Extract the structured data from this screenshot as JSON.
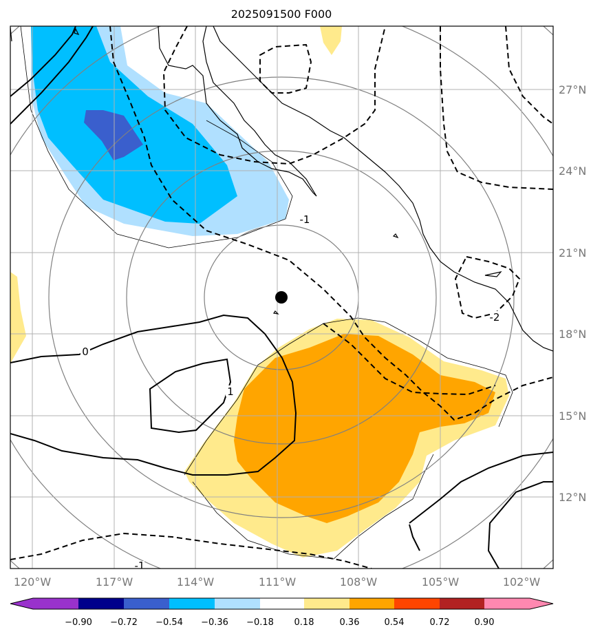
{
  "title": "2025091500 F000",
  "lat_labels": [
    "27°N",
    "24°N",
    "21°N",
    "18°N",
    "15°N",
    "12°N"
  ],
  "lon_labels": [
    "120°W",
    "117°W",
    "114°W",
    "111°W",
    "108°W",
    "105°W",
    "102°W"
  ],
  "colorbar": {
    "colors": [
      "#9932cc",
      "#00008b",
      "#3a5fcd",
      "#00bfff",
      "#b0e0ff",
      "#ffffff",
      "#ffea8c",
      "#ffa500",
      "#ff4500",
      "#b22222",
      "#ff88b0"
    ],
    "ticks": [
      "−0.90",
      "−0.72",
      "−0.54",
      "−0.36",
      "−0.18",
      "0.18",
      "0.36",
      "0.54",
      "0.72",
      "0.90"
    ]
  },
  "contour_labels": [
    "-1",
    "-2",
    "0",
    "1",
    "-1"
  ],
  "storm_center": {
    "lat": 19.3,
    "lon": "110.8°W"
  }
}
